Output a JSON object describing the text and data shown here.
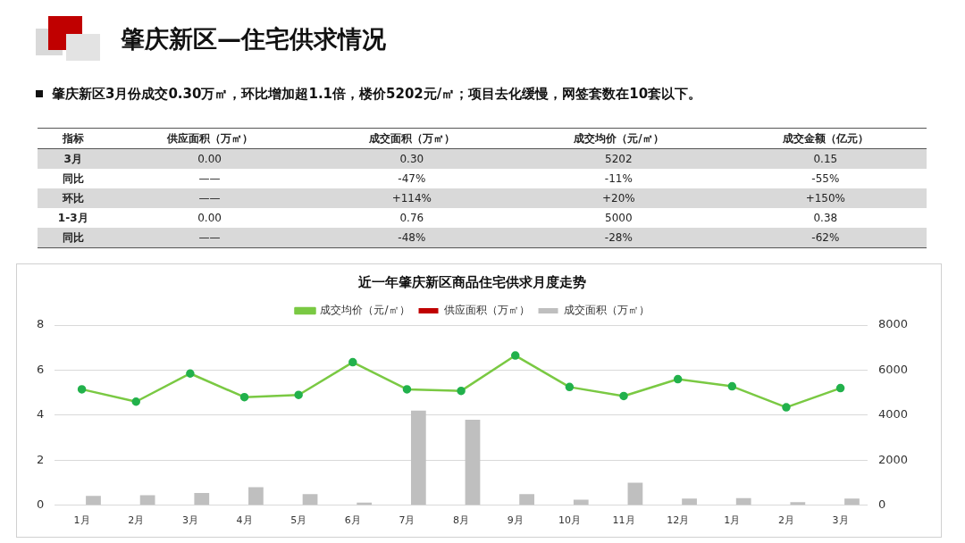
{
  "chart_data": [
    {
      "type": "other",
      "title": "肇庆新区—住宅供求情况",
      "subtitle": "肇庆新区3月份成交0.30万㎡，环比增加超1.1倍，楼价5202元/㎡；项目去化缓慢，网签套数在10套以下。",
      "categories": [
        "指标",
        "供应面积（万㎡）",
        "成交面积（万㎡）",
        "成交均价（元/㎡）",
        "成交金额（亿元）"
      ],
      "cell_labels": [
        [
          "3月",
          "0.00",
          "0.30",
          "5202",
          "0.15"
        ],
        [
          "同比",
          "——",
          "-47%",
          "-11%",
          "-55%"
        ],
        [
          "环比",
          "——",
          "+114%",
          "+20%",
          "+150%"
        ],
        [
          "1-3月",
          "0.00",
          "0.76",
          "5000",
          "0.38"
        ],
        [
          "同比",
          "——",
          "-48%",
          "-28%",
          "-62%"
        ]
      ]
    },
    {
      "type": "bar",
      "title": "近一年肇庆新区商品住宅供求月度走势",
      "categories": [
        "1月",
        "2月",
        "3月",
        "4月",
        "5月",
        "6月",
        "7月",
        "8月",
        "9月",
        "10月",
        "11月",
        "12月",
        "1月",
        "2月",
        "3月"
      ],
      "series": [
        {
          "name": "供应面积（万㎡）",
          "color": "#c00000",
          "values": [
            0,
            0,
            0,
            0,
            0,
            0,
            0,
            0,
            0,
            0,
            0,
            0,
            0,
            0,
            0
          ]
        },
        {
          "name": "成交面积（万㎡）",
          "color": "#bfbfbf",
          "values": [
            0.42,
            0.45,
            0.55,
            0.8,
            0.5,
            0.12,
            4.2,
            3.8,
            0.5,
            0.25,
            1.0,
            0.3,
            0.32,
            0.14,
            0.3
          ]
        },
        {
          "name": "成交均价（元/㎡）",
          "type": "line",
          "axis": "y2",
          "color": "#7ac943",
          "marker": "circle",
          "values": [
            5150,
            4600,
            5850,
            4800,
            4900,
            6350,
            5150,
            5080,
            6650,
            5250,
            4850,
            5600,
            5280,
            4350,
            5202
          ]
        }
      ],
      "ylim": [
        0,
        8
      ],
      "yticks": [
        0,
        2,
        4,
        6,
        8
      ],
      "y2lim": [
        0,
        8000
      ],
      "y2ticks": [
        0,
        2000,
        4000,
        6000,
        8000
      ],
      "grid": "y",
      "legend": "top"
    }
  ]
}
